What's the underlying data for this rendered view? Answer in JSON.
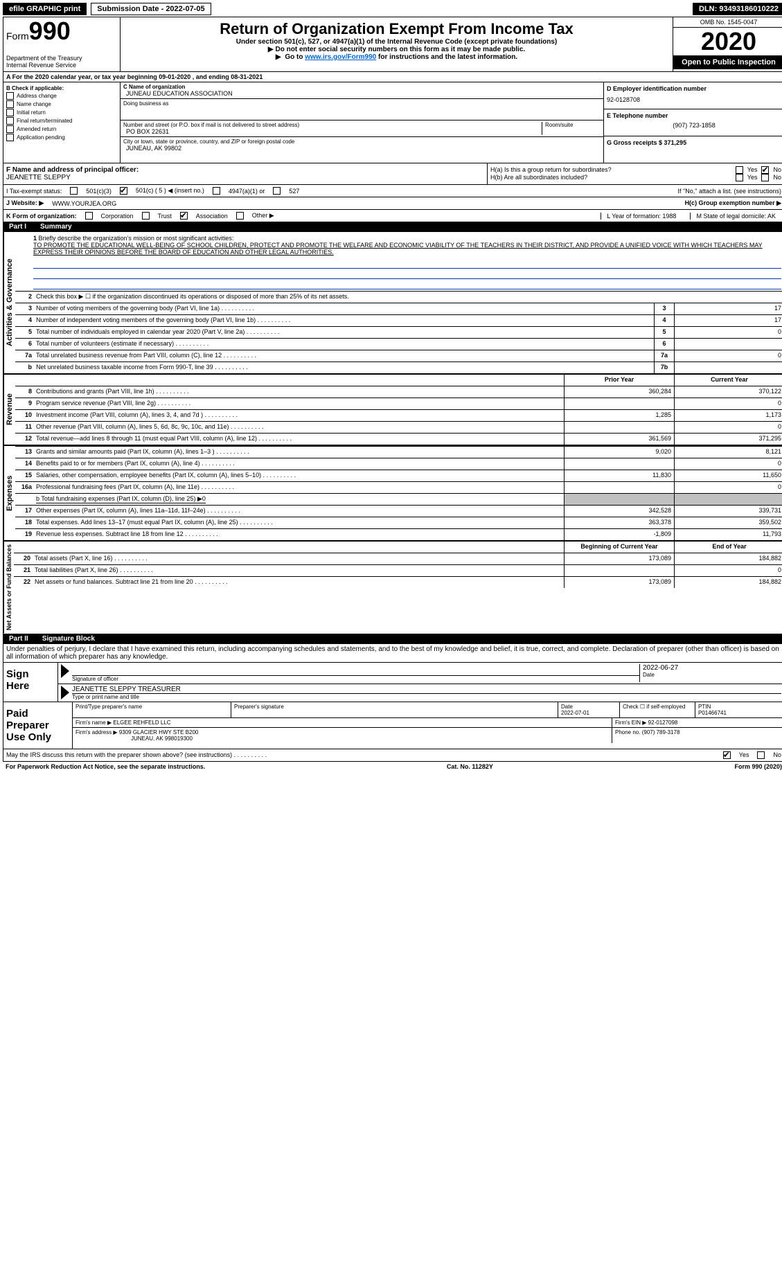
{
  "topbar": {
    "efile": "efile GRAPHIC print",
    "submission_label": "Submission Date - 2022-07-05",
    "dln": "DLN: 93493186010222"
  },
  "header": {
    "form_label": "Form",
    "form_number": "990",
    "dept1": "Department of the Treasury",
    "dept2": "Internal Revenue Service",
    "title": "Return of Organization Exempt From Income Tax",
    "subtitle1": "Under section 501(c), 527, or 4947(a)(1) of the Internal Revenue Code (except private foundations)",
    "subtitle2": "Do not enter social security numbers on this form as it may be made public.",
    "subtitle3_pre": "Go to ",
    "subtitle3_link": "www.irs.gov/Form990",
    "subtitle3_post": " for instructions and the latest information.",
    "omb": "OMB No. 1545-0047",
    "year": "2020",
    "open": "Open to Public Inspection"
  },
  "rowA": "A For the 2020 calendar year, or tax year beginning 09-01-2020   , and ending 08-31-2021",
  "sectionB": {
    "title": "B Check if applicable:",
    "items": [
      "Address change",
      "Name change",
      "Initial return",
      "Final return/terminated",
      "Amended return",
      "Application pending"
    ],
    "c_name_label": "C Name of organization",
    "c_name": "JUNEAU EDUCATION ASSOCIATION",
    "dba_label": "Doing business as",
    "addr_label": "Number and street (or P.O. box if mail is not delivered to street address)",
    "room_label": "Room/suite",
    "addr": "PO BOX 22631",
    "city_label": "City or town, state or province, country, and ZIP or foreign postal code",
    "city": "JUNEAU, AK  99802",
    "d_label": "D Employer identification number",
    "d_value": "92-0128708",
    "e_label": "E Telephone number",
    "e_value": "(907) 723-1858",
    "g_label": "G Gross receipts $ 371,295"
  },
  "rowF": {
    "f_label": "F  Name and address of principal officer:",
    "f_value": "JEANETTE SLEPPY",
    "ha": "H(a)  Is this a group return for subordinates?",
    "hb": "H(b)  Are all subordinates included?",
    "hb_note": "If \"No,\" attach a list. (see instructions)",
    "hc": "H(c)  Group exemption number ▶",
    "yes": "Yes",
    "no": "No"
  },
  "rowI": {
    "label": "I   Tax-exempt status:",
    "opts": [
      "501(c)(3)",
      "501(c) ( 5 ) ◀ (insert no.)",
      "4947(a)(1) or",
      "527"
    ]
  },
  "rowJ": {
    "label": "J   Website: ▶",
    "value": " WWW.YOURJEA.ORG"
  },
  "rowK": {
    "label": "K Form of organization:",
    "opts": [
      "Corporation",
      "Trust",
      "Association",
      "Other ▶"
    ],
    "l_label": "L Year of formation: 1988",
    "m_label": "M State of legal domicile: AK"
  },
  "partI": {
    "part": "Part I",
    "title": "Summary"
  },
  "mission": {
    "num": "1",
    "label": "Briefly describe the organization's mission or most significant activities:",
    "text": "TO PROMOTE THE EDUCATIONAL WELL-BEING OF SCHOOL CHILDREN, PROTECT AND PROMOTE THE WELFARE AND ECONOMIC VIABILITY OF THE TEACHERS IN THEIR DISTRICT, AND PROVIDE A UNIFIED VOICE WITH WHICH TEACHERS MAY EXPRESS THEIR OPINIONS BEFORE THE BOARD OF EDUCATION AND OTHER LEGAL AUTHORITIES."
  },
  "gov": {
    "label": "Activities & Governance",
    "l2": "Check this box ▶ ☐ if the organization discontinued its operations or disposed of more than 25% of its net assets.",
    "rows": [
      {
        "n": "3",
        "d": "Number of voting members of the governing body (Part VI, line 1a)",
        "c": "3",
        "v": "17"
      },
      {
        "n": "4",
        "d": "Number of independent voting members of the governing body (Part VI, line 1b)",
        "c": "4",
        "v": "17"
      },
      {
        "n": "5",
        "d": "Total number of individuals employed in calendar year 2020 (Part V, line 2a)",
        "c": "5",
        "v": "0"
      },
      {
        "n": "6",
        "d": "Total number of volunteers (estimate if necessary)",
        "c": "6",
        "v": ""
      },
      {
        "n": "7a",
        "d": "Total unrelated business revenue from Part VIII, column (C), line 12",
        "c": "7a",
        "v": "0"
      },
      {
        "n": "b",
        "d": "Net unrelated business taxable income from Form 990-T, line 39",
        "c": "7b",
        "v": ""
      }
    ]
  },
  "rev": {
    "label": "Revenue",
    "hdr_prior": "Prior Year",
    "hdr_curr": "Current Year",
    "rows": [
      {
        "n": "8",
        "d": "Contributions and grants (Part VIII, line 1h)",
        "p": "360,284",
        "c": "370,122"
      },
      {
        "n": "9",
        "d": "Program service revenue (Part VIII, line 2g)",
        "p": "",
        "c": "0"
      },
      {
        "n": "10",
        "d": "Investment income (Part VIII, column (A), lines 3, 4, and 7d )",
        "p": "1,285",
        "c": "1,173"
      },
      {
        "n": "11",
        "d": "Other revenue (Part VIII, column (A), lines 5, 6d, 8c, 9c, 10c, and 11e)",
        "p": "",
        "c": "0"
      },
      {
        "n": "12",
        "d": "Total revenue—add lines 8 through 11 (must equal Part VIII, column (A), line 12)",
        "p": "361,569",
        "c": "371,295"
      }
    ]
  },
  "exp": {
    "label": "Expenses",
    "rows": [
      {
        "n": "13",
        "d": "Grants and similar amounts paid (Part IX, column (A), lines 1–3 )",
        "p": "9,020",
        "c": "8,121"
      },
      {
        "n": "14",
        "d": "Benefits paid to or for members (Part IX, column (A), line 4)",
        "p": "",
        "c": "0"
      },
      {
        "n": "15",
        "d": "Salaries, other compensation, employee benefits (Part IX, column (A), lines 5–10)",
        "p": "11,830",
        "c": "11,650"
      },
      {
        "n": "16a",
        "d": "Professional fundraising fees (Part IX, column (A), line 11e)",
        "p": "",
        "c": "0"
      }
    ],
    "line_b": "b   Total fundraising expenses (Part IX, column (D), line 25) ▶0",
    "rows2": [
      {
        "n": "17",
        "d": "Other expenses (Part IX, column (A), lines 11a–11d, 11f–24e)",
        "p": "342,528",
        "c": "339,731"
      },
      {
        "n": "18",
        "d": "Total expenses. Add lines 13–17 (must equal Part IX, column (A), line 25)",
        "p": "363,378",
        "c": "359,502"
      },
      {
        "n": "19",
        "d": "Revenue less expenses. Subtract line 18 from line 12",
        "p": "-1,809",
        "c": "11,793"
      }
    ]
  },
  "net": {
    "label": "Net Assets or Fund Balances",
    "hdr_begin": "Beginning of Current Year",
    "hdr_end": "End of Year",
    "rows": [
      {
        "n": "20",
        "d": "Total assets (Part X, line 16)",
        "p": "173,089",
        "c": "184,882"
      },
      {
        "n": "21",
        "d": "Total liabilities (Part X, line 26)",
        "p": "",
        "c": "0"
      },
      {
        "n": "22",
        "d": "Net assets or fund balances. Subtract line 21 from line 20",
        "p": "173,089",
        "c": "184,882"
      }
    ]
  },
  "partII": {
    "part": "Part II",
    "title": "Signature Block"
  },
  "sig": {
    "declare": "Under penalties of perjury, I declare that I have examined this return, including accompanying schedules and statements, and to the best of my knowledge and belief, it is true, correct, and complete. Declaration of preparer (other than officer) is based on all information of which preparer has any knowledge.",
    "sign_here": "Sign Here",
    "sig_officer": "Signature of officer",
    "date": "2022-06-27",
    "date_label": "Date",
    "name": "JEANETTE SLEPPY TREASURER",
    "name_label": "Type or print name and title"
  },
  "prep": {
    "label": "Paid Preparer Use Only",
    "h1": "Print/Type preparer's name",
    "h2": "Preparer's signature",
    "h3": "Date",
    "h3v": "2022-07-01",
    "h4": "Check ☐ if self-employed",
    "h5": "PTIN",
    "h5v": "P01466741",
    "firm_name_label": "Firm's name    ▶",
    "firm_name": "ELGEE REHFELD LLC",
    "firm_ein": "Firm's EIN ▶ 92-0127098",
    "firm_addr_label": "Firm's address ▶",
    "firm_addr": "9309 GLACIER HWY STE B200",
    "firm_city": "JUNEAU, AK  998019300",
    "phone": "Phone no. (907) 789-3178",
    "discuss": "May the IRS discuss this return with the preparer shown above? (see instructions)",
    "yes": "Yes",
    "no": "No"
  },
  "footer": {
    "left": "For Paperwork Reduction Act Notice, see the separate instructions.",
    "mid": "Cat. No. 11282Y",
    "right": "Form 990 (2020)"
  }
}
